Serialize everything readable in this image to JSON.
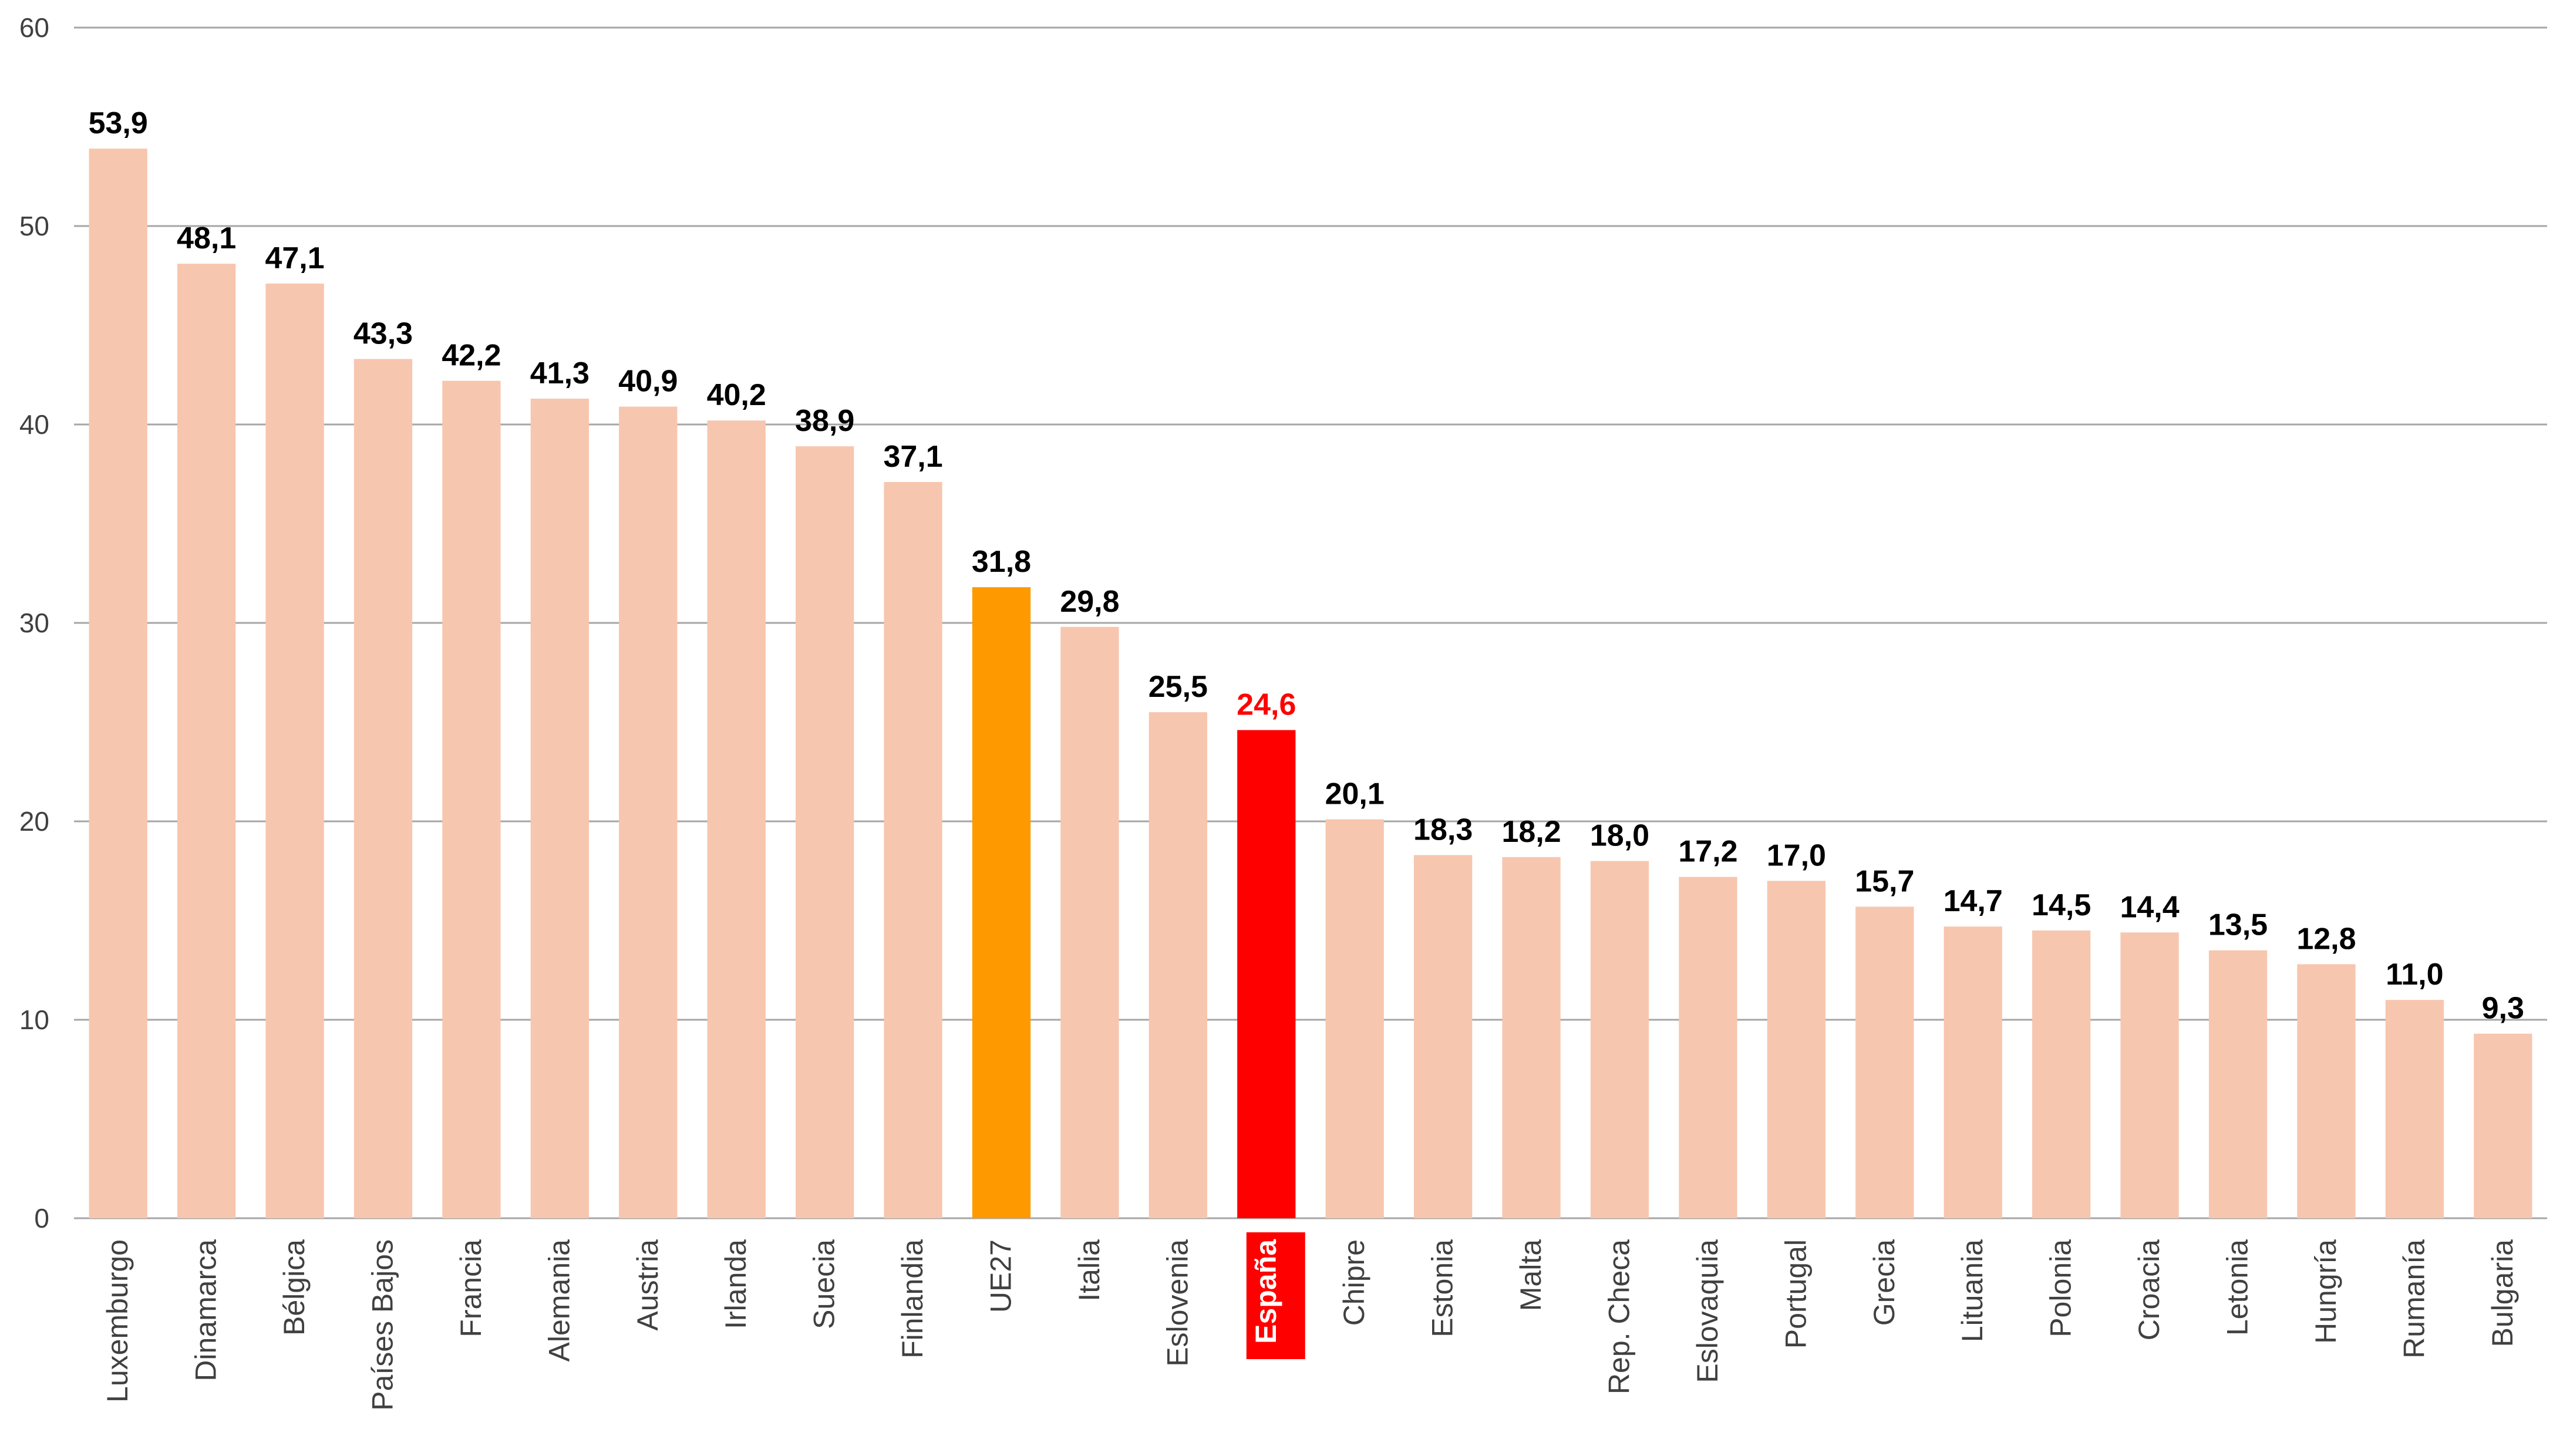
{
  "chart_data": {
    "type": "bar",
    "categories": [
      "Luxemburgo",
      "Dinamarca",
      "Bélgica",
      "Países Bajos",
      "Francia",
      "Alemania",
      "Austria",
      "Irlanda",
      "Suecia",
      "Finlandia",
      "UE27",
      "Italia",
      "Eslovenia",
      "España",
      "Chipre",
      "Estonia",
      "Malta",
      "Rep. Checa",
      "Eslovaquia",
      "Portugal",
      "Grecia",
      "Lituania",
      "Polonia",
      "Croacia",
      "Letonia",
      "Hungría",
      "Rumanía",
      "Bulgaria"
    ],
    "values": [
      53.9,
      48.1,
      47.1,
      43.3,
      42.2,
      41.3,
      40.9,
      40.2,
      38.9,
      37.1,
      31.8,
      29.8,
      25.5,
      24.6,
      20.1,
      18.3,
      18.2,
      18.0,
      17.2,
      17.0,
      15.7,
      14.7,
      14.5,
      14.4,
      13.5,
      12.8,
      11.0,
      9.3
    ],
    "value_labels": [
      "53,9",
      "48,1",
      "47,1",
      "43,3",
      "42,2",
      "41,3",
      "40,9",
      "40,2",
      "38,9",
      "37,1",
      "31,8",
      "29,8",
      "25,5",
      "24,6",
      "20,1",
      "18,3",
      "18,2",
      "18,0",
      "17,2",
      "17,0",
      "15,7",
      "14,7",
      "14,5",
      "14,4",
      "13,5",
      "12,8",
      "11,0",
      "9,3"
    ],
    "title": "",
    "xlabel": "",
    "ylabel": "",
    "ylim": [
      0,
      60
    ],
    "yticks": [
      0,
      10,
      20,
      30,
      40,
      50,
      60
    ],
    "grid": true,
    "legend": "none",
    "highlight": {
      "UE27": "orange",
      "España": "red"
    },
    "colors": {
      "default_bar": "#F7C6AE",
      "ue27_bar": "#FF9900",
      "spain_bar": "#FF0000",
      "spain_label_text": "#FF0000",
      "value_label": "#000000",
      "axis_text": "#404040",
      "gridline": "#A6A6A6",
      "spain_category_bg": "#FF0000",
      "spain_category_text": "#FFFFFF"
    }
  }
}
